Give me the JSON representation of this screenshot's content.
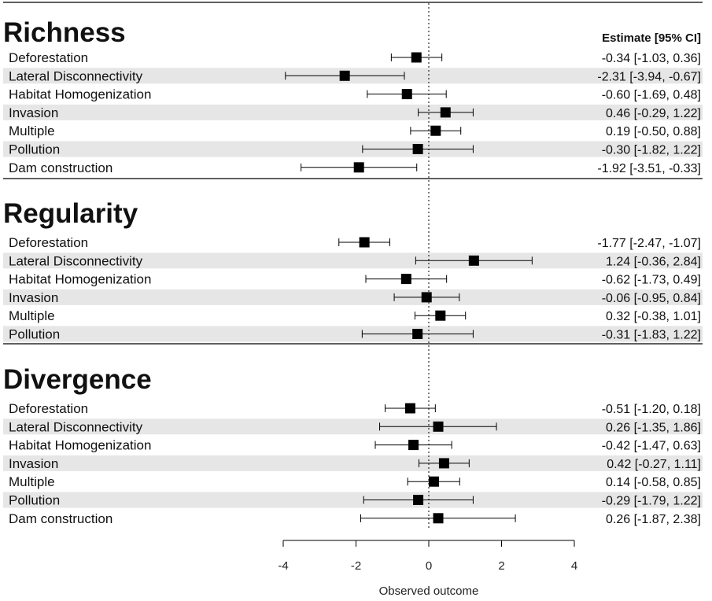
{
  "chart_data": {
    "type": "forest",
    "estimate_header": "Estimate [95% CI]",
    "xlabel": "Observed outcome",
    "xlim": [
      -4,
      4
    ],
    "xticks": [
      "-4",
      "-2",
      "0",
      "2",
      "4"
    ],
    "reference_line": 0,
    "sections": [
      {
        "title": "Richness",
        "rows": [
          {
            "label": "Deforestation",
            "est": -0.34,
            "lo": -1.03,
            "hi": 0.36,
            "text": "-0.34 [-1.03,  0.36]"
          },
          {
            "label": "Lateral Disconnectivity",
            "est": -2.31,
            "lo": -3.94,
            "hi": -0.67,
            "text": "-2.31 [-3.94, -0.67]"
          },
          {
            "label": "Habitat Homogenization",
            "est": -0.6,
            "lo": -1.69,
            "hi": 0.48,
            "text": "-0.60 [-1.69,  0.48]"
          },
          {
            "label": "Invasion",
            "est": 0.46,
            "lo": -0.29,
            "hi": 1.22,
            "text": "0.46 [-0.29,  1.22]"
          },
          {
            "label": "Multiple",
            "est": 0.19,
            "lo": -0.5,
            "hi": 0.88,
            "text": "0.19 [-0.50,  0.88]"
          },
          {
            "label": "Pollution",
            "est": -0.3,
            "lo": -1.82,
            "hi": 1.22,
            "text": "-0.30 [-1.82,  1.22]"
          },
          {
            "label": "Dam construction",
            "est": -1.92,
            "lo": -3.51,
            "hi": -0.33,
            "text": "-1.92 [-3.51, -0.33]"
          }
        ]
      },
      {
        "title": "Regularity",
        "rows": [
          {
            "label": "Deforestation",
            "est": -1.77,
            "lo": -2.47,
            "hi": -1.07,
            "text": "-1.77 [-2.47, -1.07]"
          },
          {
            "label": "Lateral Disconnectivity",
            "est": 1.24,
            "lo": -0.36,
            "hi": 2.84,
            "text": "1.24 [-0.36,  2.84]"
          },
          {
            "label": "Habitat Homogenization",
            "est": -0.62,
            "lo": -1.73,
            "hi": 0.49,
            "text": "-0.62 [-1.73,  0.49]"
          },
          {
            "label": "Invasion",
            "est": -0.06,
            "lo": -0.95,
            "hi": 0.84,
            "text": "-0.06 [-0.95,  0.84]"
          },
          {
            "label": "Multiple",
            "est": 0.32,
            "lo": -0.38,
            "hi": 1.01,
            "text": "0.32 [-0.38,  1.01]"
          },
          {
            "label": "Pollution",
            "est": -0.31,
            "lo": -1.83,
            "hi": 1.22,
            "text": "-0.31 [-1.83,  1.22]"
          }
        ]
      },
      {
        "title": "Divergence",
        "rows": [
          {
            "label": "Deforestation",
            "est": -0.51,
            "lo": -1.2,
            "hi": 0.18,
            "text": "-0.51 [-1.20,  0.18]"
          },
          {
            "label": "Lateral Disconnectivity",
            "est": 0.26,
            "lo": -1.35,
            "hi": 1.86,
            "text": "0.26 [-1.35,  1.86]"
          },
          {
            "label": "Habitat Homogenization",
            "est": -0.42,
            "lo": -1.47,
            "hi": 0.63,
            "text": "-0.42 [-1.47,  0.63]"
          },
          {
            "label": "Invasion",
            "est": 0.42,
            "lo": -0.27,
            "hi": 1.11,
            "text": "0.42 [-0.27,  1.11]"
          },
          {
            "label": "Multiple",
            "est": 0.14,
            "lo": -0.58,
            "hi": 0.85,
            "text": "0.14 [-0.58,  0.85]"
          },
          {
            "label": "Pollution",
            "est": -0.29,
            "lo": -1.79,
            "hi": 1.22,
            "text": "-0.29 [-1.79,  1.22]"
          },
          {
            "label": "Dam construction",
            "est": 0.26,
            "lo": -1.87,
            "hi": 2.38,
            "text": "0.26 [-1.87,  2.38]"
          }
        ]
      }
    ],
    "colors": {
      "stripe": "#e6e6e6",
      "marker": "#000000",
      "line": "#000000"
    }
  }
}
